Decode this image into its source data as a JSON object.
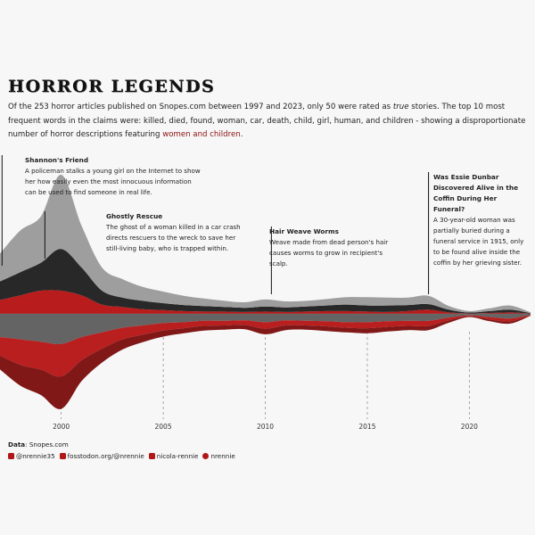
{
  "title": "HORROR LEGENDS",
  "subtitle": {
    "part1": "Of the 253 horror articles published on Snopes.com between 1997 and 2023, only 50 were rated as ",
    "italic": "true",
    "part2": " stories. The top 10 most frequent words in the claims were: killed, died, found, woman, car, death, child, girl, human, and children - showing a disproportionate number of horror descriptions featuring ",
    "highlight": "women and children",
    "part3": "."
  },
  "annotations": [
    {
      "year": 1997.1,
      "title": "Shannon's Friend",
      "text": "A policeman stalks a young girl on the Internet to show her how easily even the most innocuous information can be used to find someone in real life."
    },
    {
      "year": 1999.2,
      "title": "Ghostly Rescue",
      "text": "The ghost of a woman killed in a car crash directs rescuers to the wreck to save her still-living baby, who is trapped within."
    },
    {
      "year": 2010.3,
      "title": "Hair Weave Worms",
      "text": "Weave made from dead person's hair causes worms to grow in recipient's scalp."
    },
    {
      "year": 2018.0,
      "title": "Was Essie Dunbar Discovered Alive in the Coffin During Her Funeral?",
      "text": "A 30-year-old woman was partially buried during a funeral service in 1915, only to be found alive inside the coffin by her grieving sister."
    }
  ],
  "caption": {
    "data_label": "Data",
    "data_source": "Snopes.com",
    "social": [
      {
        "icon": "twitter-icon",
        "handle": "@nrennie35"
      },
      {
        "icon": "mastodon-icon",
        "handle": "fosstodon.org/@nrennie"
      },
      {
        "icon": "linkedin-icon",
        "handle": "nicola-rennie"
      },
      {
        "icon": "github-icon",
        "handle": "nrennie"
      }
    ]
  },
  "colors": {
    "background": "#f7f7f7",
    "red_dark": "#7a0c0c",
    "red": "#b51313",
    "red_bright": "#d41c1c",
    "grey_dark": "#1f1f1f",
    "grey_mid": "#5c5c5c",
    "grey_light": "#9a9a9a",
    "grey_pale": "#c4c4c4"
  },
  "chart_data": {
    "type": "area",
    "subtype": "streamgraph",
    "x": [
      1997,
      1998,
      1999,
      2000,
      2001,
      2002,
      2003,
      2004,
      2005,
      2006,
      2007,
      2008,
      2009,
      2010,
      2011,
      2012,
      2013,
      2014,
      2015,
      2016,
      2017,
      2018,
      2019,
      2020,
      2021,
      2022,
      2023
    ],
    "xticks": [
      2000,
      2005,
      2010,
      2015,
      2020
    ],
    "series": [
      {
        "role": "true-top",
        "values": [
          6,
          9,
          10,
          16,
          9,
          5,
          4,
          3,
          2.5,
          2,
          1.6,
          1.3,
          1.2,
          1.5,
          1.3,
          1.2,
          1.4,
          1.6,
          1.8,
          1.7,
          1.6,
          1.8,
          0.8,
          0.3,
          0.6,
          0.9,
          0.2
        ]
      },
      {
        "role": "true-mid",
        "values": [
          4,
          5,
          6,
          9,
          6,
          3,
          2,
          1.8,
          1.5,
          1.3,
          1.2,
          1,
          0.9,
          1.1,
          1,
          1.1,
          1.2,
          1.4,
          1.3,
          1.4,
          1.3,
          1.2,
          0.6,
          0.2,
          0.4,
          0.6,
          0.1
        ]
      },
      {
        "role": "true-red",
        "values": [
          3,
          4,
          5,
          5,
          4,
          2,
          1.5,
          1,
          0.8,
          0.6,
          0.5,
          0.5,
          0.4,
          0.5,
          0.4,
          0.5,
          0.6,
          0.6,
          0.5,
          0.4,
          0.6,
          0.9,
          0.3,
          0.1,
          0.2,
          0.3,
          0.05
        ]
      },
      {
        "role": "false-grey",
        "values": [
          5,
          5.5,
          6,
          6.5,
          5,
          4,
          3,
          2.5,
          2,
          1.8,
          1.5,
          1.5,
          1.4,
          1.8,
          1.4,
          1.5,
          1.6,
          1.8,
          1.8,
          1.6,
          1.5,
          1.5,
          0.8,
          0.3,
          0.7,
          1,
          0.2
        ]
      },
      {
        "role": "false-red-1",
        "values": [
          4,
          5.5,
          6,
          7,
          5,
          3.5,
          2.5,
          2,
          1.6,
          1.3,
          1.1,
          1,
          1,
          1.4,
          1.1,
          1,
          1.1,
          1.2,
          1.3,
          1.2,
          1.1,
          1.1,
          0.6,
          0.2,
          0.5,
          0.6,
          0.1
        ]
      },
      {
        "role": "false-red-2",
        "values": [
          3,
          4.5,
          5.5,
          7,
          4.5,
          3,
          2.2,
          1.6,
          1.3,
          1.1,
          1,
          0.9,
          0.9,
          1.2,
          1,
          0.9,
          1,
          1,
          1.1,
          1,
          0.9,
          0.9,
          0.5,
          0.2,
          0.4,
          0.5,
          0.1
        ]
      }
    ]
  }
}
